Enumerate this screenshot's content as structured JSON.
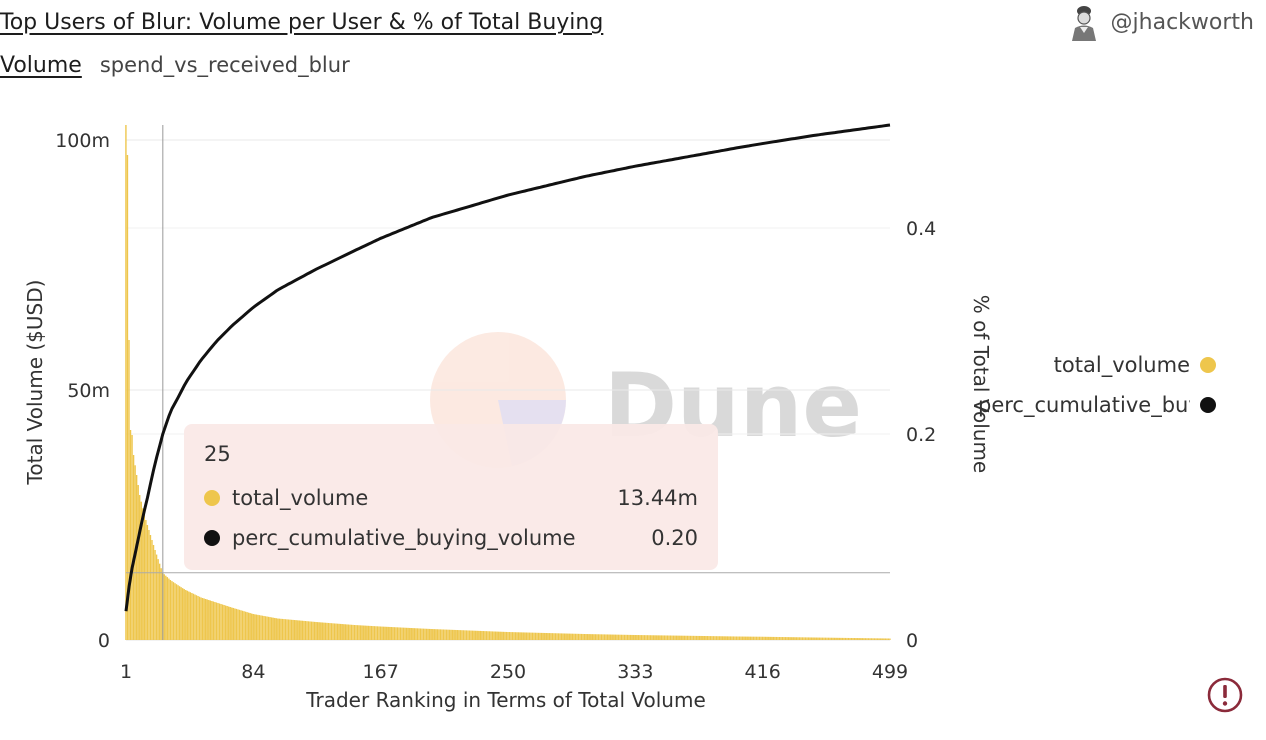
{
  "header": {
    "title": "Top Users of Blur: Volume per User & % of Total Buying Volume",
    "query_name": "spend_vs_received_blur",
    "author": "@jhackworth"
  },
  "watermark": "Dune",
  "colors": {
    "total_volume": "#eec64c",
    "perc_cumulative_buying_volume": "#111111",
    "tooltip_bg": "#fae8e6",
    "alert": "#8b2a3a"
  },
  "legend": [
    {
      "label": "total_volume",
      "color": "#eec64c"
    },
    {
      "label": "perc_cumulative_buying_volume",
      "color": "#111111"
    }
  ],
  "tooltip": {
    "x": "25",
    "rows": [
      {
        "label": "total_volume",
        "value": "13.44m",
        "color": "#eec64c"
      },
      {
        "label": "perc_cumulative_buying_volume",
        "value": "0.20",
        "color": "#111111"
      }
    ]
  },
  "chart_data": {
    "type": "bar",
    "xlabel": "Trader Ranking in Terms of Total Volume",
    "ylabel": "Total Volume ($USD)",
    "y2label": "% of Total Volume",
    "xlim": [
      1,
      499
    ],
    "x_ticks": [
      "1",
      "84",
      "167",
      "250",
      "333",
      "416",
      "499"
    ],
    "ylim": [
      0,
      100000000
    ],
    "y_ticks": [
      {
        "value": 0,
        "label": "0"
      },
      {
        "value": 50000000,
        "label": "50m"
      },
      {
        "value": 100000000,
        "label": "100m"
      }
    ],
    "y2lim": [
      0,
      0.5
    ],
    "y2_ticks": [
      {
        "value": 0,
        "label": "0"
      },
      {
        "value": 0.2,
        "label": "0.2"
      },
      {
        "value": 0.4,
        "label": "0.4"
      }
    ],
    "legend_position": "right",
    "grid": true,
    "hover_x": 25,
    "series": [
      {
        "name": "total_volume",
        "axis": "left",
        "kind": "bar",
        "color": "#eec64c",
        "points": [
          [
            1,
            103000000
          ],
          [
            2,
            97000000
          ],
          [
            3,
            60000000
          ],
          [
            4,
            42000000
          ],
          [
            5,
            41000000
          ],
          [
            6,
            37000000
          ],
          [
            8,
            33000000
          ],
          [
            10,
            29000000
          ],
          [
            13,
            25000000
          ],
          [
            16,
            22000000
          ],
          [
            20,
            18000000
          ],
          [
            25,
            13440000
          ],
          [
            30,
            12000000
          ],
          [
            40,
            10000000
          ],
          [
            50,
            8500000
          ],
          [
            60,
            7500000
          ],
          [
            70,
            6500000
          ],
          [
            84,
            5200000
          ],
          [
            100,
            4300000
          ],
          [
            125,
            3600000
          ],
          [
            150,
            3000000
          ],
          [
            167,
            2700000
          ],
          [
            200,
            2200000
          ],
          [
            250,
            1600000
          ],
          [
            300,
            1200000
          ],
          [
            333,
            1000000
          ],
          [
            400,
            700000
          ],
          [
            416,
            650000
          ],
          [
            450,
            500000
          ],
          [
            499,
            300000
          ]
        ]
      },
      {
        "name": "perc_cumulative_buying_volume",
        "axis": "right",
        "kind": "line",
        "color": "#111111",
        "points": [
          [
            1,
            0.028
          ],
          [
            3,
            0.052
          ],
          [
            5,
            0.07
          ],
          [
            8,
            0.092
          ],
          [
            12,
            0.12
          ],
          [
            16,
            0.145
          ],
          [
            20,
            0.172
          ],
          [
            25,
            0.2
          ],
          [
            30,
            0.222
          ],
          [
            40,
            0.25
          ],
          [
            50,
            0.272
          ],
          [
            60,
            0.29
          ],
          [
            70,
            0.305
          ],
          [
            84,
            0.323
          ],
          [
            100,
            0.34
          ],
          [
            125,
            0.36
          ],
          [
            150,
            0.378
          ],
          [
            167,
            0.39
          ],
          [
            200,
            0.41
          ],
          [
            250,
            0.432
          ],
          [
            300,
            0.45
          ],
          [
            333,
            0.46
          ],
          [
            400,
            0.478
          ],
          [
            416,
            0.482
          ],
          [
            450,
            0.49
          ],
          [
            499,
            0.5
          ]
        ]
      }
    ]
  }
}
